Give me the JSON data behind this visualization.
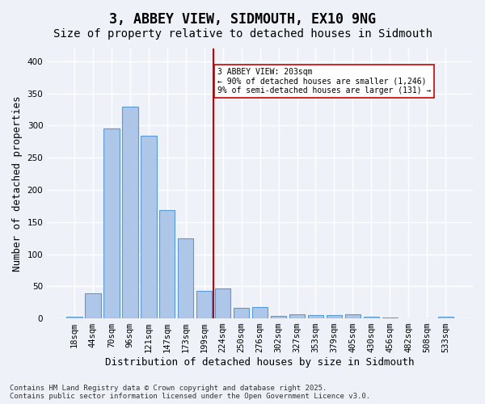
{
  "title": "3, ABBEY VIEW, SIDMOUTH, EX10 9NG",
  "subtitle": "Size of property relative to detached houses in Sidmouth",
  "xlabel": "Distribution of detached houses by size in Sidmouth",
  "ylabel": "Number of detached properties",
  "footer": "Contains HM Land Registry data © Crown copyright and database right 2025.\nContains public sector information licensed under the Open Government Licence v3.0.",
  "bin_labels": [
    "18sqm",
    "44sqm",
    "70sqm",
    "96sqm",
    "121sqm",
    "147sqm",
    "173sqm",
    "199sqm",
    "224sqm",
    "250sqm",
    "276sqm",
    "302sqm",
    "327sqm",
    "353sqm",
    "379sqm",
    "405sqm",
    "430sqm",
    "456sqm",
    "482sqm",
    "508sqm",
    "533sqm"
  ],
  "bar_values": [
    3,
    39,
    296,
    330,
    284,
    169,
    125,
    43,
    46,
    16,
    18,
    4,
    6,
    5,
    5,
    7,
    3,
    1,
    0,
    0,
    2
  ],
  "bar_color": "#aec6e8",
  "bar_edge_color": "#5b9bd5",
  "vline_x": 8,
  "vline_color": "#cc0000",
  "annotation_text": "3 ABBEY VIEW: 203sqm\n← 90% of detached houses are smaller (1,246)\n9% of semi-detached houses are larger (131) →",
  "annotation_box_color": "#ffffff",
  "annotation_box_edge_color": "#cc0000",
  "ylim": [
    0,
    420
  ],
  "yticks": [
    0,
    50,
    100,
    150,
    200,
    250,
    300,
    350,
    400
  ],
  "bg_color": "#eef2f8",
  "plot_bg_color": "#eef2f8",
  "grid_color": "#ffffff",
  "title_fontsize": 12,
  "subtitle_fontsize": 10,
  "label_fontsize": 9,
  "tick_fontsize": 7.5,
  "footer_fontsize": 6.5
}
